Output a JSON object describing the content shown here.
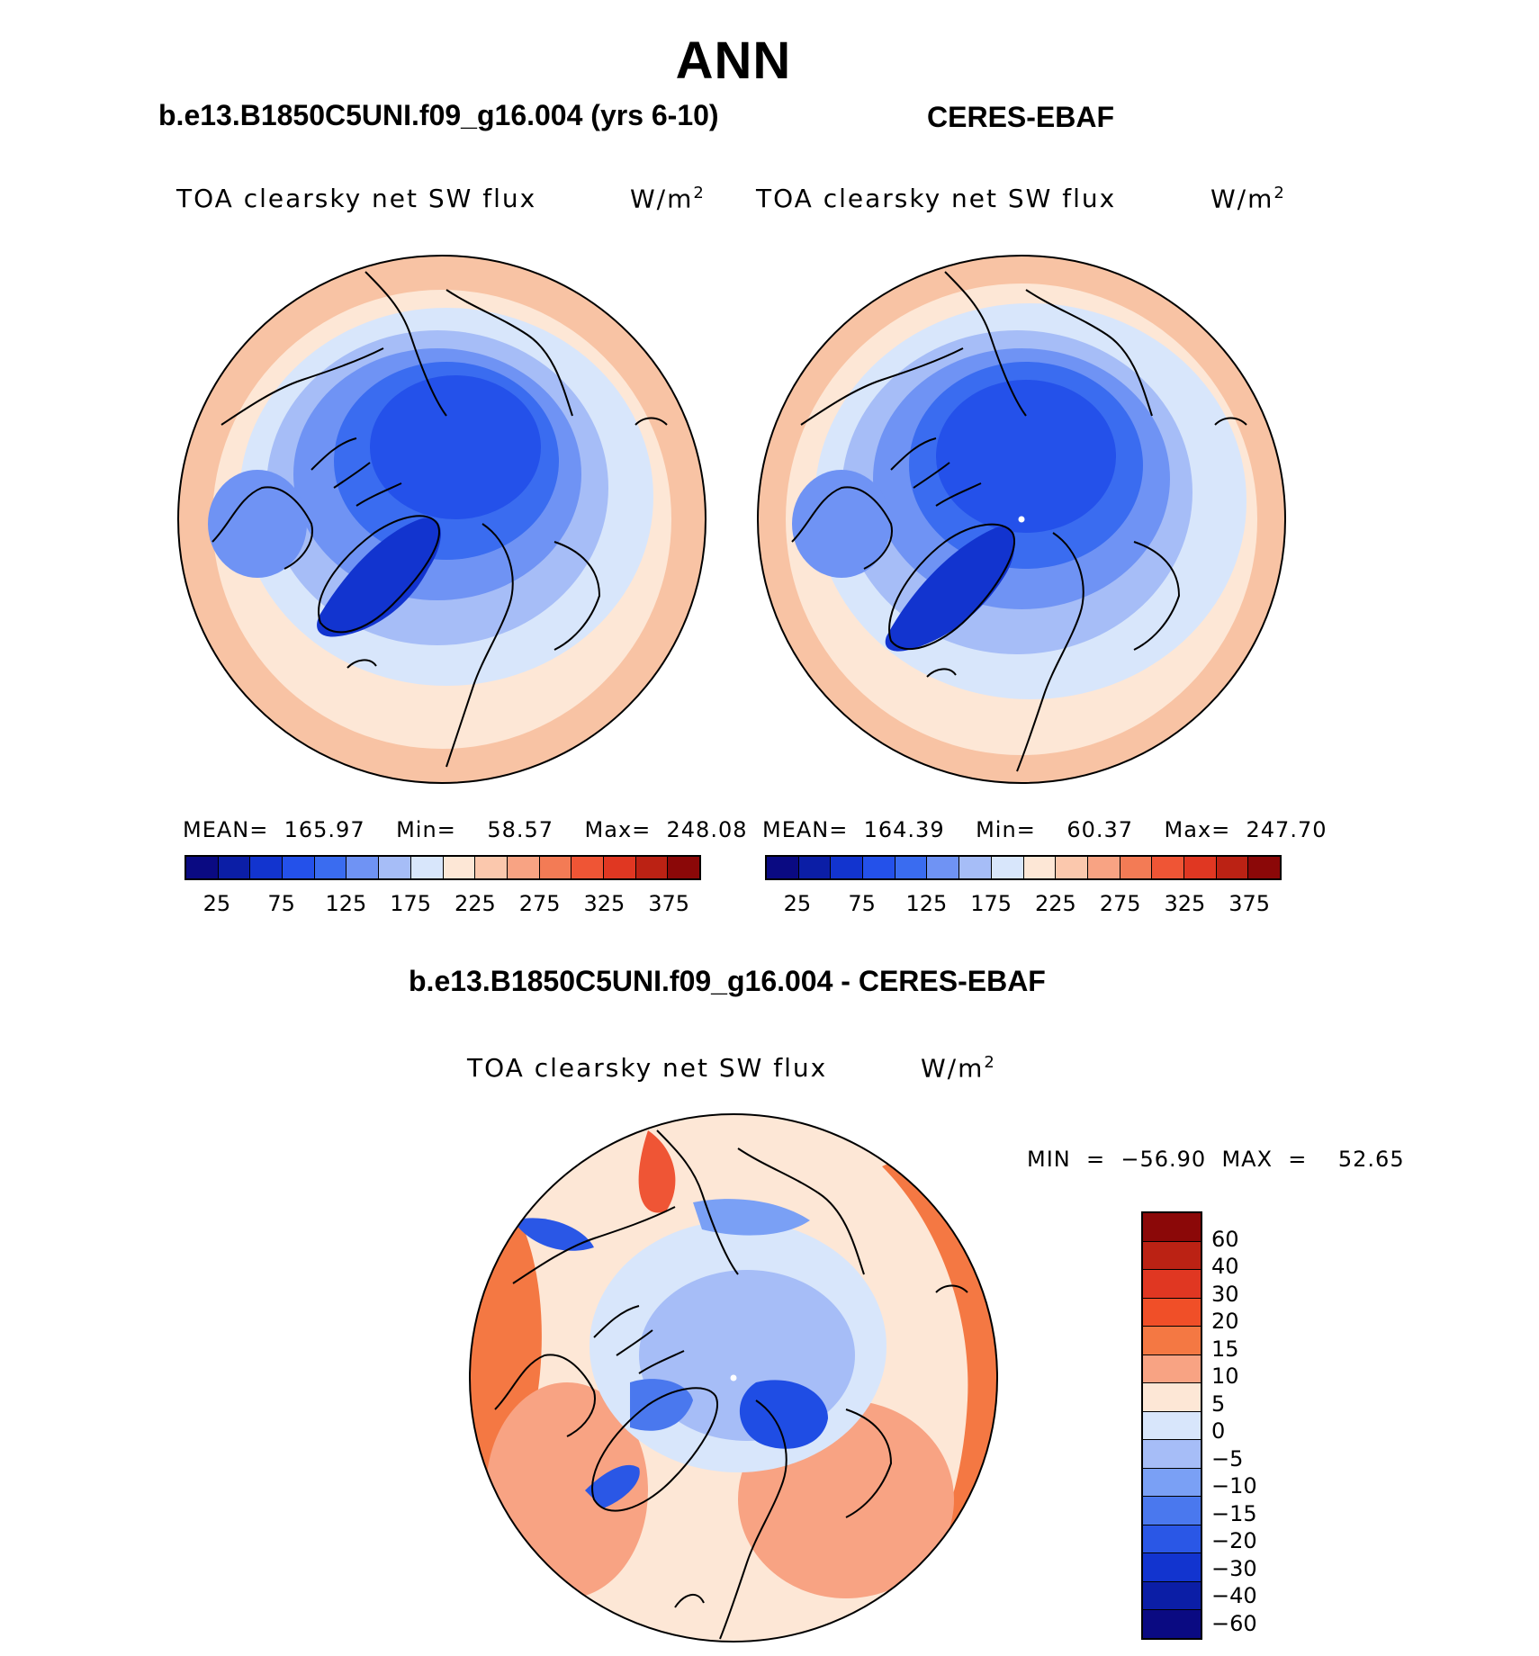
{
  "figure": {
    "title": "ANN"
  },
  "panels": [
    {
      "id": "model",
      "title": "b.e13.B1850C5UNI.f09_g16.004 (yrs 6-10)",
      "variable": "TOA clearsky net SW flux",
      "units_base": "W/m",
      "units_exp": "2",
      "stats": "MEAN=  165.97    Min=    58.57    Max=  248.08"
    },
    {
      "id": "obs",
      "title": "CERES-EBAF",
      "variable": "TOA clearsky net SW flux",
      "units_base": "W/m",
      "units_exp": "2",
      "stats": "MEAN=  164.39    Min=    60.37    Max=  247.70"
    },
    {
      "id": "diff",
      "title": "b.e13.B1850C5UNI.f09_g16.004 - CERES-EBAF",
      "variable": "TOA clearsky net SW flux",
      "units_base": "W/m",
      "units_exp": "2",
      "stats": "MIN  =  −56.90  MAX  =    52.65"
    }
  ],
  "chart_data": [
    {
      "type": "heatmap",
      "projection": "north-polar-stereographic",
      "title": "b.e13.B1850C5UNI.f09_g16.004 (yrs 6-10)",
      "variable": "TOA clearsky net SW flux",
      "units": "W/m2",
      "mean": 165.97,
      "min": 58.57,
      "max": 248.08,
      "contour_levels": [
        0,
        25,
        50,
        75,
        100,
        125,
        150,
        175,
        200,
        225,
        250,
        275,
        300,
        325,
        350,
        375,
        400
      ],
      "colorbar_labels": [
        "25",
        "75",
        "125",
        "175",
        "225",
        "275",
        "325",
        "375"
      ],
      "colors": [
        "#0a0a82",
        "#0b1ea6",
        "#1234cf",
        "#2451ea",
        "#3a6cf0",
        "#6f93f4",
        "#a6bdf7",
        "#d8e6fb",
        "#fde7d6",
        "#fbc8ad",
        "#f8a383",
        "#f37b55",
        "#ef5535",
        "#e03722",
        "#bb2214",
        "#8b0808"
      ]
    },
    {
      "type": "heatmap",
      "projection": "north-polar-stereographic",
      "title": "CERES-EBAF",
      "variable": "TOA clearsky net SW flux",
      "units": "W/m2",
      "mean": 164.39,
      "min": 60.37,
      "max": 247.7,
      "contour_levels": [
        0,
        25,
        50,
        75,
        100,
        125,
        150,
        175,
        200,
        225,
        250,
        275,
        300,
        325,
        350,
        375,
        400
      ],
      "colorbar_labels": [
        "25",
        "75",
        "125",
        "175",
        "225",
        "275",
        "325",
        "375"
      ],
      "colors": [
        "#0a0a82",
        "#0b1ea6",
        "#1234cf",
        "#2451ea",
        "#3a6cf0",
        "#6f93f4",
        "#a6bdf7",
        "#d8e6fb",
        "#fde7d6",
        "#fbc8ad",
        "#f8a383",
        "#f37b55",
        "#ef5535",
        "#e03722",
        "#bb2214",
        "#8b0808"
      ]
    },
    {
      "type": "heatmap",
      "projection": "north-polar-stereographic",
      "title": "b.e13.B1850C5UNI.f09_g16.004 - CERES-EBAF",
      "variable": "TOA clearsky net SW flux",
      "units": "W/m2",
      "min": -56.9,
      "max": 52.65,
      "colorbar_labels": [
        "60",
        "40",
        "30",
        "20",
        "15",
        "10",
        "5",
        "0",
        "−5",
        "−10",
        "−15",
        "−20",
        "−30",
        "−40",
        "−60"
      ],
      "colors": [
        "#8b0808",
        "#bb2214",
        "#e03722",
        "#f04f28",
        "#f47843",
        "#f8a383",
        "#fde7d6",
        "#d8e6fb",
        "#a6bdf7",
        "#7aa0f5",
        "#4a78ee",
        "#2a57e6",
        "#1234cf",
        "#0b1ea6",
        "#0a0a82"
      ]
    }
  ]
}
